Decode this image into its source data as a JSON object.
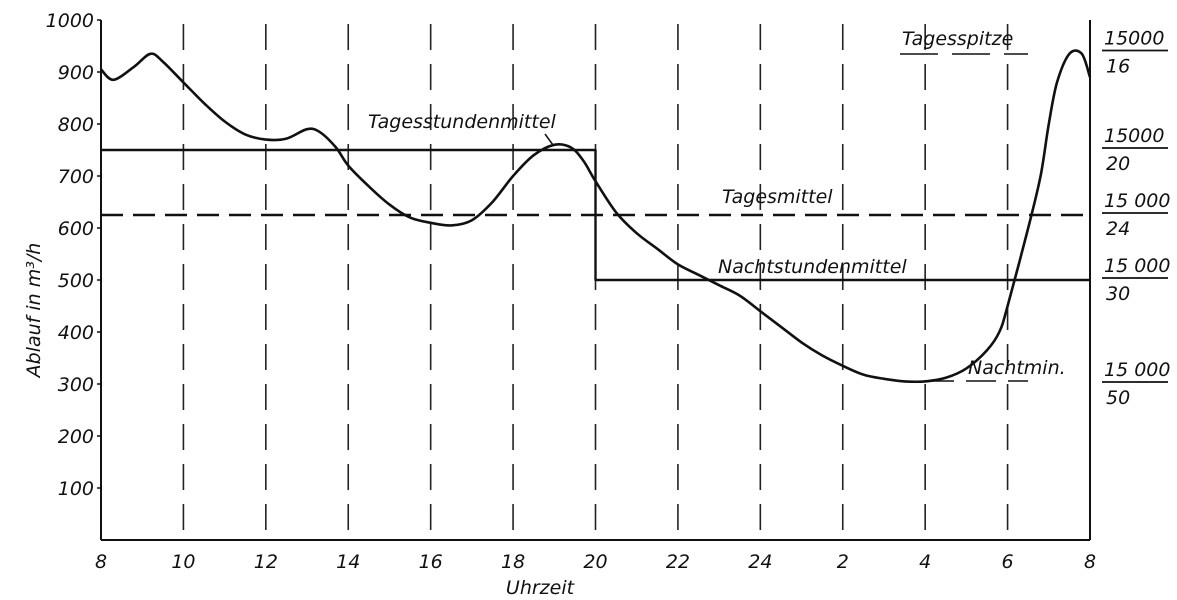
{
  "chart_data": {
    "type": "line",
    "title": "",
    "xlabel": "Uhrzeit",
    "ylabel": "Ablauf in m³/h",
    "ylim": [
      0,
      1000
    ],
    "grid": "dashed vertical lines at every 2 hours",
    "x_ticks": [
      "8",
      "10",
      "12",
      "14",
      "16",
      "18",
      "20",
      "22",
      "24",
      "2",
      "4",
      "6",
      "8"
    ],
    "y_ticks": [
      "100",
      "200",
      "300",
      "400",
      "500",
      "600",
      "700",
      "800",
      "900",
      "1000"
    ],
    "series": [
      {
        "name": "",
        "style": "solid curve",
        "x_hours": [
          8,
          8.3,
          8.8,
          9.2,
          9.5,
          10,
          10.5,
          11,
          11.5,
          12,
          12.5,
          13,
          13.3,
          13.7,
          14,
          14.5,
          15,
          15.5,
          16,
          16.5,
          17,
          17.5,
          18,
          18.5,
          19,
          19.4,
          19.7,
          20,
          20.5,
          21,
          21.5,
          22,
          22.5,
          23,
          23.5,
          24,
          24.5,
          25,
          25.5,
          26,
          26.5,
          27,
          27.5,
          28,
          28.5,
          29,
          29.5,
          29.8,
          30,
          30.5,
          30.8,
          31,
          31.2,
          31.5,
          31.8,
          32
        ],
        "y_values": [
          905,
          885,
          910,
          935,
          920,
          880,
          840,
          805,
          780,
          770,
          772,
          790,
          785,
          755,
          720,
          680,
          645,
          620,
          610,
          605,
          615,
          650,
          700,
          740,
          760,
          755,
          730,
          690,
          630,
          590,
          560,
          530,
          510,
          490,
          470,
          440,
          410,
          380,
          355,
          335,
          318,
          310,
          305,
          305,
          312,
          330,
          365,
          400,
          450,
          600,
          700,
          800,
          880,
          935,
          935,
          890
        ]
      },
      {
        "name": "Tagesstundenmittel",
        "style": "solid step",
        "x_hours": [
          8,
          20,
          20,
          32
        ],
        "y_values": [
          750,
          750,
          500,
          500
        ]
      },
      {
        "name": "Tagesmittel",
        "style": "dashed",
        "x_hours": [
          8,
          32
        ],
        "y_values": [
          625,
          625
        ]
      }
    ],
    "annotations": [
      {
        "id": "tagesstundenmittel",
        "text": "Tagesstundenmittel"
      },
      {
        "id": "tagesmittel",
        "text": "Tagesmittel"
      },
      {
        "id": "nachtstundenmittel",
        "text": "Nachtstundenmittel"
      },
      {
        "id": "tagesspitze",
        "text": "Tagesspitze"
      },
      {
        "id": "nachtmin",
        "text": "Nachtmin."
      }
    ],
    "right_ratios": [
      {
        "numerator": "15000",
        "denominator": "16",
        "value": 937.5
      },
      {
        "numerator": "15000",
        "denominator": "20",
        "value": 750
      },
      {
        "numerator": "15 000",
        "denominator": "24",
        "value": 625
      },
      {
        "numerator": "15 000",
        "denominator": "30",
        "value": 500
      },
      {
        "numerator": "15 000",
        "denominator": "50",
        "value": 300
      }
    ]
  }
}
